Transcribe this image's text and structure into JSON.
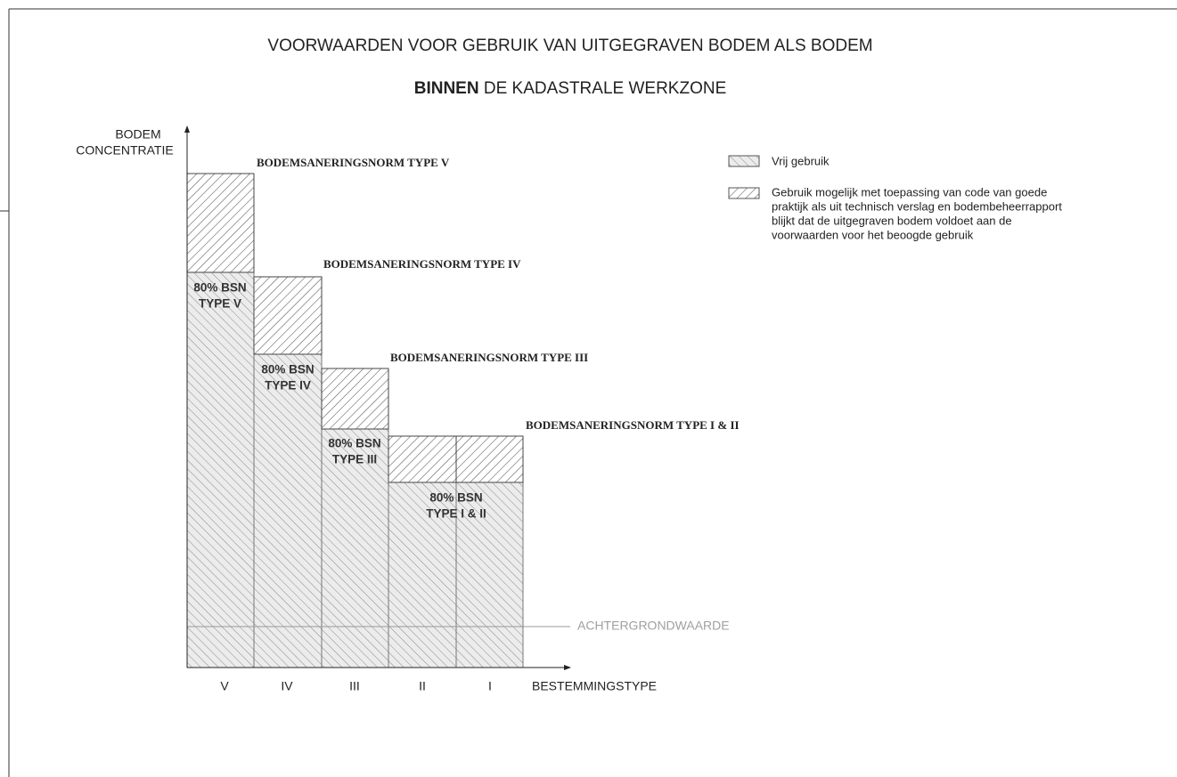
{
  "title": {
    "line1": "VOORWAARDEN VOOR GEBRUIK VAN UITGEGRAVEN BODEM ALS BODEM",
    "line2_bold": "BINNEN",
    "line2_rest": " DE KADASTRALE WERKZONE"
  },
  "y_axis_label": [
    "BODEM",
    "CONCENTRATIE"
  ],
  "x_axis_label": "BESTEMMINGSTYPE",
  "categories": [
    "V",
    "IV",
    "III",
    "II",
    "I"
  ],
  "norm_labels": [
    "BODEMSANERINGSNORM TYPE V",
    "BODEMSANERINGSNORM TYPE IV",
    "BODEMSANERINGSNORM TYPE III",
    "BODEMSANERINGSNORM TYPE I & II"
  ],
  "bsn_labels": [
    [
      "80% BSN",
      "TYPE V"
    ],
    [
      "80% BSN",
      "TYPE IV"
    ],
    [
      "80% BSN",
      "TYPE III"
    ],
    [
      "80% BSN",
      "TYPE I & II"
    ]
  ],
  "background_label": "ACHTERGRONDWAARDE",
  "legend": [
    {
      "text": [
        "Vrij gebruik"
      ]
    },
    {
      "text": [
        "Gebruik mogelijk met toepassing van code van goede",
        "praktijk als uit technisch verslag en bodembeheerrapport",
        "blijkt dat de uitgegraven bodem voldoet aan de",
        "voorwaarden voor het beoogde gebruik"
      ]
    }
  ]
}
